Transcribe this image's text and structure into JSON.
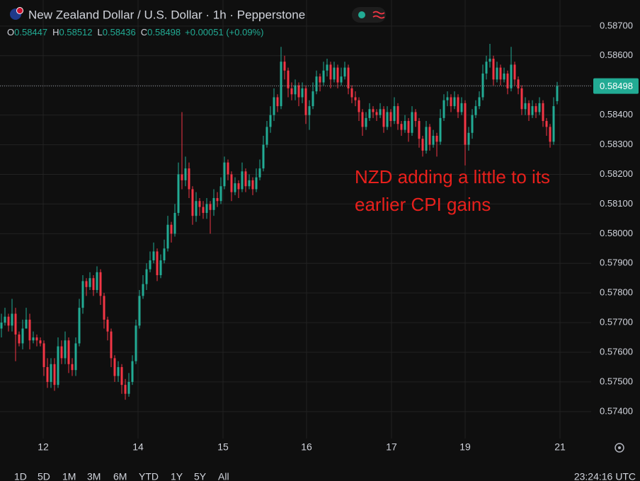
{
  "header": {
    "title": "New Zealand Dollar / U.S. Dollar · 1h · Pepperstone",
    "ohlc": [
      {
        "label": "O",
        "value": "0.58447"
      },
      {
        "label": "H",
        "value": "0.58512"
      },
      {
        "label": "L",
        "value": "0.58436"
      },
      {
        "label": "C",
        "value": "0.58498"
      }
    ],
    "change": "+0.00051 (+0.09%)"
  },
  "footer": {
    "ranges": [
      "1D",
      "5D",
      "1M",
      "3M",
      "6M",
      "YTD",
      "1Y",
      "5Y",
      "All"
    ],
    "clock": "23:24:16 UTC"
  },
  "chart_data": {
    "type": "candlestick",
    "up_color": "#22ab94",
    "down_color": "#f23645",
    "grid": true,
    "annotations": [
      "NZD adding a little to its",
      "earlier CPI gains"
    ],
    "annotation_color": "#e8201c",
    "last_price": {
      "value": 0.58498,
      "label": "0.58498"
    },
    "xlim": [
      -0.4,
      166.6
    ],
    "xticks": [
      {
        "value": 11.8,
        "label": "12"
      },
      {
        "value": 38.6,
        "label": "14"
      },
      {
        "value": 62.6,
        "label": "15"
      },
      {
        "value": 86.2,
        "label": "16"
      },
      {
        "value": 110.2,
        "label": "17"
      },
      {
        "value": 131,
        "label": "19"
      },
      {
        "value": 157.8,
        "label": "21"
      }
    ],
    "ylim": [
      0.57309,
      0.58788
    ],
    "yticks": [
      {
        "value": 0.574,
        "label": "0.57400"
      },
      {
        "value": 0.575,
        "label": "0.57500"
      },
      {
        "value": 0.576,
        "label": "0.57600"
      },
      {
        "value": 0.577,
        "label": "0.57700"
      },
      {
        "value": 0.578,
        "label": "0.57800"
      },
      {
        "value": 0.579,
        "label": "0.57900"
      },
      {
        "value": 0.58,
        "label": "0.58000"
      },
      {
        "value": 0.581,
        "label": "0.58100"
      },
      {
        "value": 0.582,
        "label": "0.58200"
      },
      {
        "value": 0.583,
        "label": "0.58300"
      },
      {
        "value": 0.584,
        "label": "0.58400"
      },
      {
        "value": 0.585,
        "label": "0.58500"
      },
      {
        "value": 0.586,
        "label": "0.58600"
      },
      {
        "value": 0.587,
        "label": "0.58700"
      }
    ],
    "open": [
      0.5768,
      0.577,
      0.5772,
      0.5769,
      0.5773,
      0.5766,
      0.5763,
      0.5768,
      0.5771,
      0.5764,
      0.5765,
      0.5764,
      0.5763,
      0.5755,
      0.575,
      0.5756,
      0.5749,
      0.5762,
      0.5758,
      0.5764,
      0.5756,
      0.5754,
      0.5763,
      0.5775,
      0.5784,
      0.5782,
      0.5785,
      0.5781,
      0.5787,
      0.5779,
      0.5771,
      0.5767,
      0.5758,
      0.5752,
      0.5755,
      0.5749,
      0.5746,
      0.575,
      0.5757,
      0.5769,
      0.5779,
      0.5783,
      0.5788,
      0.5791,
      0.5794,
      0.5786,
      0.5791,
      0.5795,
      0.5803,
      0.58,
      0.5807,
      0.582,
      0.5818,
      0.5822,
      0.5815,
      0.5806,
      0.5811,
      0.5809,
      0.5807,
      0.581,
      0.5808,
      0.5812,
      0.5811,
      0.5816,
      0.5824,
      0.582,
      0.5814,
      0.5817,
      0.5815,
      0.5821,
      0.5816,
      0.5818,
      0.5815,
      0.5819,
      0.5822,
      0.583,
      0.5836,
      0.584,
      0.5846,
      0.5843,
      0.5858,
      0.5855,
      0.5849,
      0.5847,
      0.585,
      0.5846,
      0.5849,
      0.584,
      0.5843,
      0.5848,
      0.5853,
      0.5851,
      0.5855,
      0.5857,
      0.5852,
      0.5856,
      0.5851,
      0.5853,
      0.5856,
      0.5849,
      0.5846,
      0.5845,
      0.5841,
      0.5836,
      0.5839,
      0.5842,
      0.5841,
      0.584,
      0.5842,
      0.5836,
      0.5841,
      0.5838,
      0.5843,
      0.5837,
      0.5835,
      0.5838,
      0.5834,
      0.5841,
      0.5838,
      0.5832,
      0.5828,
      0.5836,
      0.583,
      0.5833,
      0.5831,
      0.5839,
      0.5845,
      0.5846,
      0.5843,
      0.5846,
      0.5841,
      0.5844,
      0.583,
      0.5834,
      0.584,
      0.5843,
      0.5846,
      0.5854,
      0.5858,
      0.5859,
      0.5852,
      0.5856,
      0.5852,
      0.5854,
      0.5849,
      0.5857,
      0.5852,
      0.5849,
      0.5842,
      0.5844,
      0.584,
      0.5843,
      0.5841,
      0.5844,
      0.5838,
      0.5836,
      0.5831,
      0.58447
    ],
    "high": [
      0.5773,
      0.5775,
      0.5773,
      0.5778,
      0.5775,
      0.5767,
      0.5771,
      0.5775,
      0.5773,
      0.5767,
      0.5766,
      0.5765,
      0.5764,
      0.5758,
      0.5758,
      0.5758,
      0.5765,
      0.5764,
      0.5767,
      0.5765,
      0.5758,
      0.5765,
      0.5778,
      0.5786,
      0.5785,
      0.5787,
      0.5786,
      0.5789,
      0.5788,
      0.578,
      0.5772,
      0.5768,
      0.5759,
      0.5757,
      0.5756,
      0.5751,
      0.5753,
      0.5759,
      0.5771,
      0.5781,
      0.5786,
      0.579,
      0.5794,
      0.5797,
      0.5795,
      0.5793,
      0.5798,
      0.5806,
      0.5804,
      0.581,
      0.5824,
      0.5841,
      0.5826,
      0.5824,
      0.5816,
      0.5814,
      0.5812,
      0.5811,
      0.5812,
      0.5811,
      0.5815,
      0.5814,
      0.5819,
      0.5826,
      0.5825,
      0.5821,
      0.5819,
      0.5818,
      0.5824,
      0.5822,
      0.582,
      0.5819,
      0.5822,
      0.5825,
      0.5833,
      0.5838,
      0.5843,
      0.5849,
      0.5847,
      0.5863,
      0.586,
      0.5856,
      0.5851,
      0.5852,
      0.5851,
      0.5851,
      0.585,
      0.5845,
      0.5851,
      0.5855,
      0.5854,
      0.5858,
      0.5859,
      0.5858,
      0.5858,
      0.5857,
      0.5856,
      0.5858,
      0.5857,
      0.585,
      0.5848,
      0.5846,
      0.5842,
      0.5841,
      0.5844,
      0.5843,
      0.5842,
      0.5844,
      0.5843,
      0.5843,
      0.5842,
      0.5846,
      0.5844,
      0.5838,
      0.584,
      0.5839,
      0.5843,
      0.5842,
      0.5839,
      0.5833,
      0.5838,
      0.5837,
      0.5835,
      0.5834,
      0.5842,
      0.5847,
      0.5848,
      0.5847,
      0.5848,
      0.5847,
      0.5846,
      0.5845,
      0.5836,
      0.5842,
      0.5845,
      0.5848,
      0.5857,
      0.586,
      0.5864,
      0.586,
      0.5858,
      0.5857,
      0.5856,
      0.5855,
      0.5863,
      0.5858,
      0.5853,
      0.585,
      0.5846,
      0.5845,
      0.5845,
      0.5844,
      0.5846,
      0.5845,
      0.5839,
      0.5837,
      0.5846,
      0.58512
    ],
    "low": [
      0.5765,
      0.5769,
      0.5767,
      0.5767,
      0.5757,
      0.5762,
      0.5761,
      0.5768,
      0.5761,
      0.5763,
      0.5762,
      0.5762,
      0.5752,
      0.5748,
      0.5748,
      0.5747,
      0.5748,
      0.5756,
      0.5756,
      0.5753,
      0.5752,
      0.5752,
      0.5762,
      0.5773,
      0.5779,
      0.5781,
      0.5779,
      0.578,
      0.5776,
      0.5768,
      0.5764,
      0.5755,
      0.575,
      0.575,
      0.5746,
      0.5744,
      0.5745,
      0.5749,
      0.5756,
      0.5768,
      0.5778,
      0.5781,
      0.5787,
      0.579,
      0.5784,
      0.5785,
      0.579,
      0.5794,
      0.5797,
      0.5799,
      0.5806,
      0.5815,
      0.5816,
      0.5812,
      0.5803,
      0.5804,
      0.5806,
      0.5805,
      0.5805,
      0.58,
      0.5806,
      0.5809,
      0.581,
      0.5815,
      0.5818,
      0.5811,
      0.5813,
      0.5812,
      0.5814,
      0.5814,
      0.5815,
      0.5813,
      0.5814,
      0.5818,
      0.5821,
      0.5829,
      0.5834,
      0.5838,
      0.5841,
      0.5842,
      0.5852,
      0.5846,
      0.5845,
      0.5845,
      0.5843,
      0.5844,
      0.5837,
      0.5835,
      0.5842,
      0.5847,
      0.5848,
      0.585,
      0.5853,
      0.5849,
      0.5851,
      0.5849,
      0.585,
      0.5852,
      0.5847,
      0.5844,
      0.5843,
      0.5838,
      0.5833,
      0.5835,
      0.5838,
      0.5839,
      0.5838,
      0.5839,
      0.5834,
      0.5835,
      0.5836,
      0.5837,
      0.5835,
      0.5833,
      0.5834,
      0.5831,
      0.5833,
      0.5836,
      0.5829,
      0.5826,
      0.5827,
      0.5828,
      0.5829,
      0.5826,
      0.583,
      0.5838,
      0.5843,
      0.5841,
      0.5842,
      0.5839,
      0.584,
      0.5823,
      0.5828,
      0.5832,
      0.5839,
      0.5842,
      0.5845,
      0.5852,
      0.5856,
      0.585,
      0.5851,
      0.585,
      0.5851,
      0.5847,
      0.5848,
      0.585,
      0.5847,
      0.584,
      0.584,
      0.5838,
      0.5839,
      0.5839,
      0.584,
      0.5836,
      0.5833,
      0.5829,
      0.583,
      0.58436
    ],
    "close": [
      0.577,
      0.5772,
      0.5769,
      0.5773,
      0.5766,
      0.5763,
      0.5768,
      0.5771,
      0.5764,
      0.5765,
      0.5764,
      0.5763,
      0.5755,
      0.575,
      0.5756,
      0.5749,
      0.5762,
      0.5758,
      0.5764,
      0.5756,
      0.5754,
      0.5763,
      0.5775,
      0.5784,
      0.5782,
      0.5785,
      0.5781,
      0.5787,
      0.5779,
      0.5771,
      0.5767,
      0.5758,
      0.5752,
      0.5755,
      0.5749,
      0.5746,
      0.575,
      0.5757,
      0.5769,
      0.5779,
      0.5783,
      0.5788,
      0.5791,
      0.5794,
      0.5786,
      0.5791,
      0.5795,
      0.5803,
      0.58,
      0.5807,
      0.582,
      0.5818,
      0.5822,
      0.5815,
      0.5806,
      0.5811,
      0.5809,
      0.5807,
      0.581,
      0.5808,
      0.5812,
      0.5811,
      0.5816,
      0.5824,
      0.582,
      0.5814,
      0.5817,
      0.5815,
      0.5821,
      0.5816,
      0.5818,
      0.5815,
      0.5819,
      0.5822,
      0.583,
      0.5836,
      0.584,
      0.5846,
      0.5843,
      0.5858,
      0.5855,
      0.5849,
      0.5847,
      0.585,
      0.5846,
      0.5849,
      0.584,
      0.5843,
      0.5848,
      0.5853,
      0.5851,
      0.5855,
      0.5857,
      0.5852,
      0.5856,
      0.5851,
      0.5853,
      0.5856,
      0.5849,
      0.5846,
      0.5845,
      0.5841,
      0.5836,
      0.5839,
      0.5842,
      0.5841,
      0.584,
      0.5842,
      0.5836,
      0.5841,
      0.5838,
      0.5843,
      0.5837,
      0.5835,
      0.5838,
      0.5834,
      0.5841,
      0.5838,
      0.5832,
      0.5828,
      0.5836,
      0.583,
      0.5833,
      0.5831,
      0.5839,
      0.5845,
      0.5846,
      0.5843,
      0.5846,
      0.5841,
      0.5844,
      0.583,
      0.5834,
      0.584,
      0.5843,
      0.5846,
      0.5854,
      0.5858,
      0.5859,
      0.5852,
      0.5856,
      0.5852,
      0.5854,
      0.5849,
      0.5857,
      0.5852,
      0.5849,
      0.5842,
      0.5844,
      0.584,
      0.5843,
      0.5841,
      0.5844,
      0.5838,
      0.5836,
      0.5831,
      0.5843,
      0.58498
    ]
  }
}
